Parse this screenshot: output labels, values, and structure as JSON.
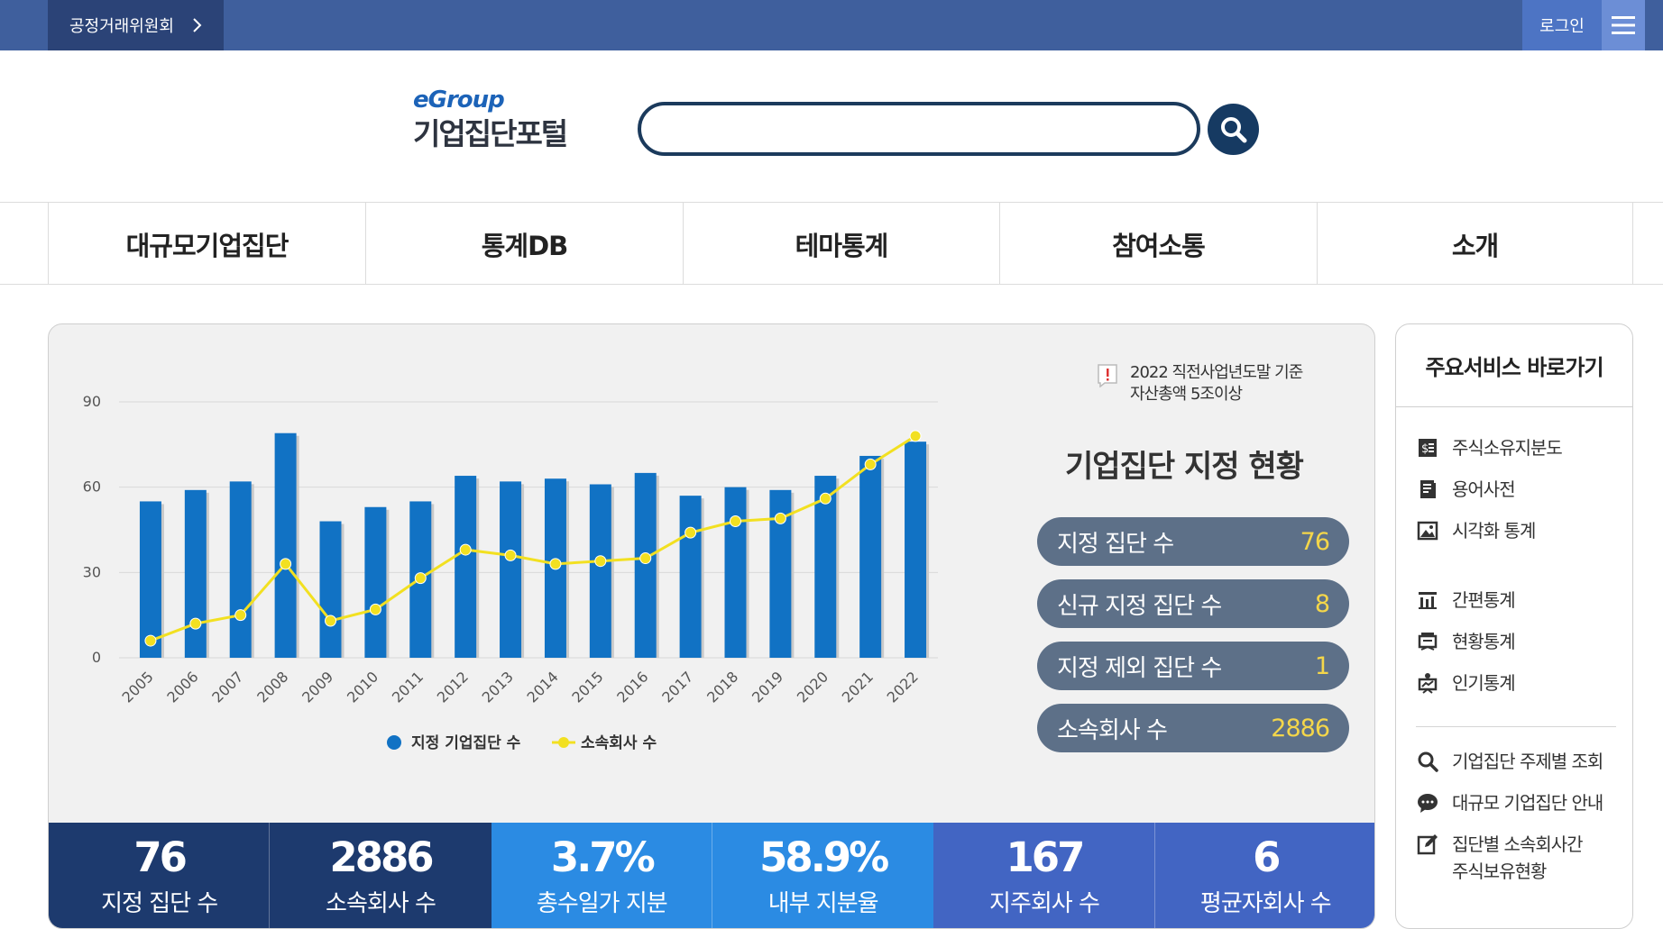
{
  "topbar": {
    "org_label": "공정거래위원회",
    "login_label": "로그인"
  },
  "logo": {
    "prefix": "eGroup",
    "name": "기업집단포털"
  },
  "search": {
    "placeholder": ""
  },
  "nav": [
    "대규모기업집단",
    "통계DB",
    "테마통계",
    "참여소통",
    "소개"
  ],
  "notice": {
    "line1": "2022 직전사업년도말 기준",
    "line2": "자산총액 5조이상"
  },
  "status": {
    "title": "기업집단 지정 현황",
    "items": [
      {
        "label": "지정 집단 수",
        "value": "76"
      },
      {
        "label": "신규 지정 집단 수",
        "value": "8"
      },
      {
        "label": "지정 제외 집단 수",
        "value": "1"
      },
      {
        "label": "소속회사 수",
        "value": "2886"
      }
    ]
  },
  "stats": [
    {
      "num": "76",
      "cap": "지정 집단 수",
      "color": "#1d3a6e"
    },
    {
      "num": "2886",
      "cap": "소속회사 수",
      "color": "#1d3a6e"
    },
    {
      "num": "3.7%",
      "cap": "총수일가 지분",
      "color": "#2b8be3"
    },
    {
      "num": "58.9%",
      "cap": "내부 지분율",
      "color": "#2b8be3"
    },
    {
      "num": "167",
      "cap": "지주회사 수",
      "color": "#4265c3"
    },
    {
      "num": "6",
      "cap": "평균자회사 수",
      "color": "#4265c3"
    }
  ],
  "side": {
    "title": "주요서비스 바로가기",
    "links": [
      {
        "label": "주식소유지분도",
        "icon": "share-chart-icon"
      },
      {
        "label": "용어사전",
        "icon": "dictionary-icon"
      },
      {
        "label": "시각화 통계",
        "icon": "image-stats-icon"
      },
      {
        "label": "간편통계",
        "icon": "simple-stats-icon"
      },
      {
        "label": "현황통계",
        "icon": "status-stats-icon"
      },
      {
        "label": "인기통계",
        "icon": "popular-stats-icon"
      },
      {
        "label": "기업집단 주제별 조회",
        "icon": "search-icon"
      },
      {
        "label": "대규모 기업집단 안내",
        "icon": "chat-bubble-icon"
      },
      {
        "label": "집단별 소속회사간\n주식보유현황",
        "icon": "edit-icon"
      }
    ]
  },
  "chart_data": {
    "type": "bar",
    "categories": [
      "2005",
      "2006",
      "2007",
      "2008",
      "2009",
      "2010",
      "2011",
      "2012",
      "2013",
      "2014",
      "2015",
      "2016",
      "2017",
      "2018",
      "2019",
      "2020",
      "2021",
      "2022"
    ],
    "ylim": [
      0,
      90
    ],
    "yticks": [
      0,
      30,
      60,
      90
    ],
    "grid": true,
    "legend_position": "bottom",
    "series": [
      {
        "name": "지정 기업집단 수",
        "type": "bar",
        "color": "#1172c4",
        "values": [
          55,
          59,
          62,
          79,
          48,
          53,
          55,
          64,
          62,
          63,
          61,
          65,
          57,
          60,
          59,
          64,
          71,
          76
        ]
      },
      {
        "name": "소속회사 수",
        "type": "line",
        "color": "#f2e021",
        "values": [
          6,
          12,
          15,
          33,
          13,
          17,
          28,
          38,
          36,
          33,
          34,
          35,
          44,
          48,
          49,
          56,
          68,
          78
        ]
      }
    ]
  }
}
